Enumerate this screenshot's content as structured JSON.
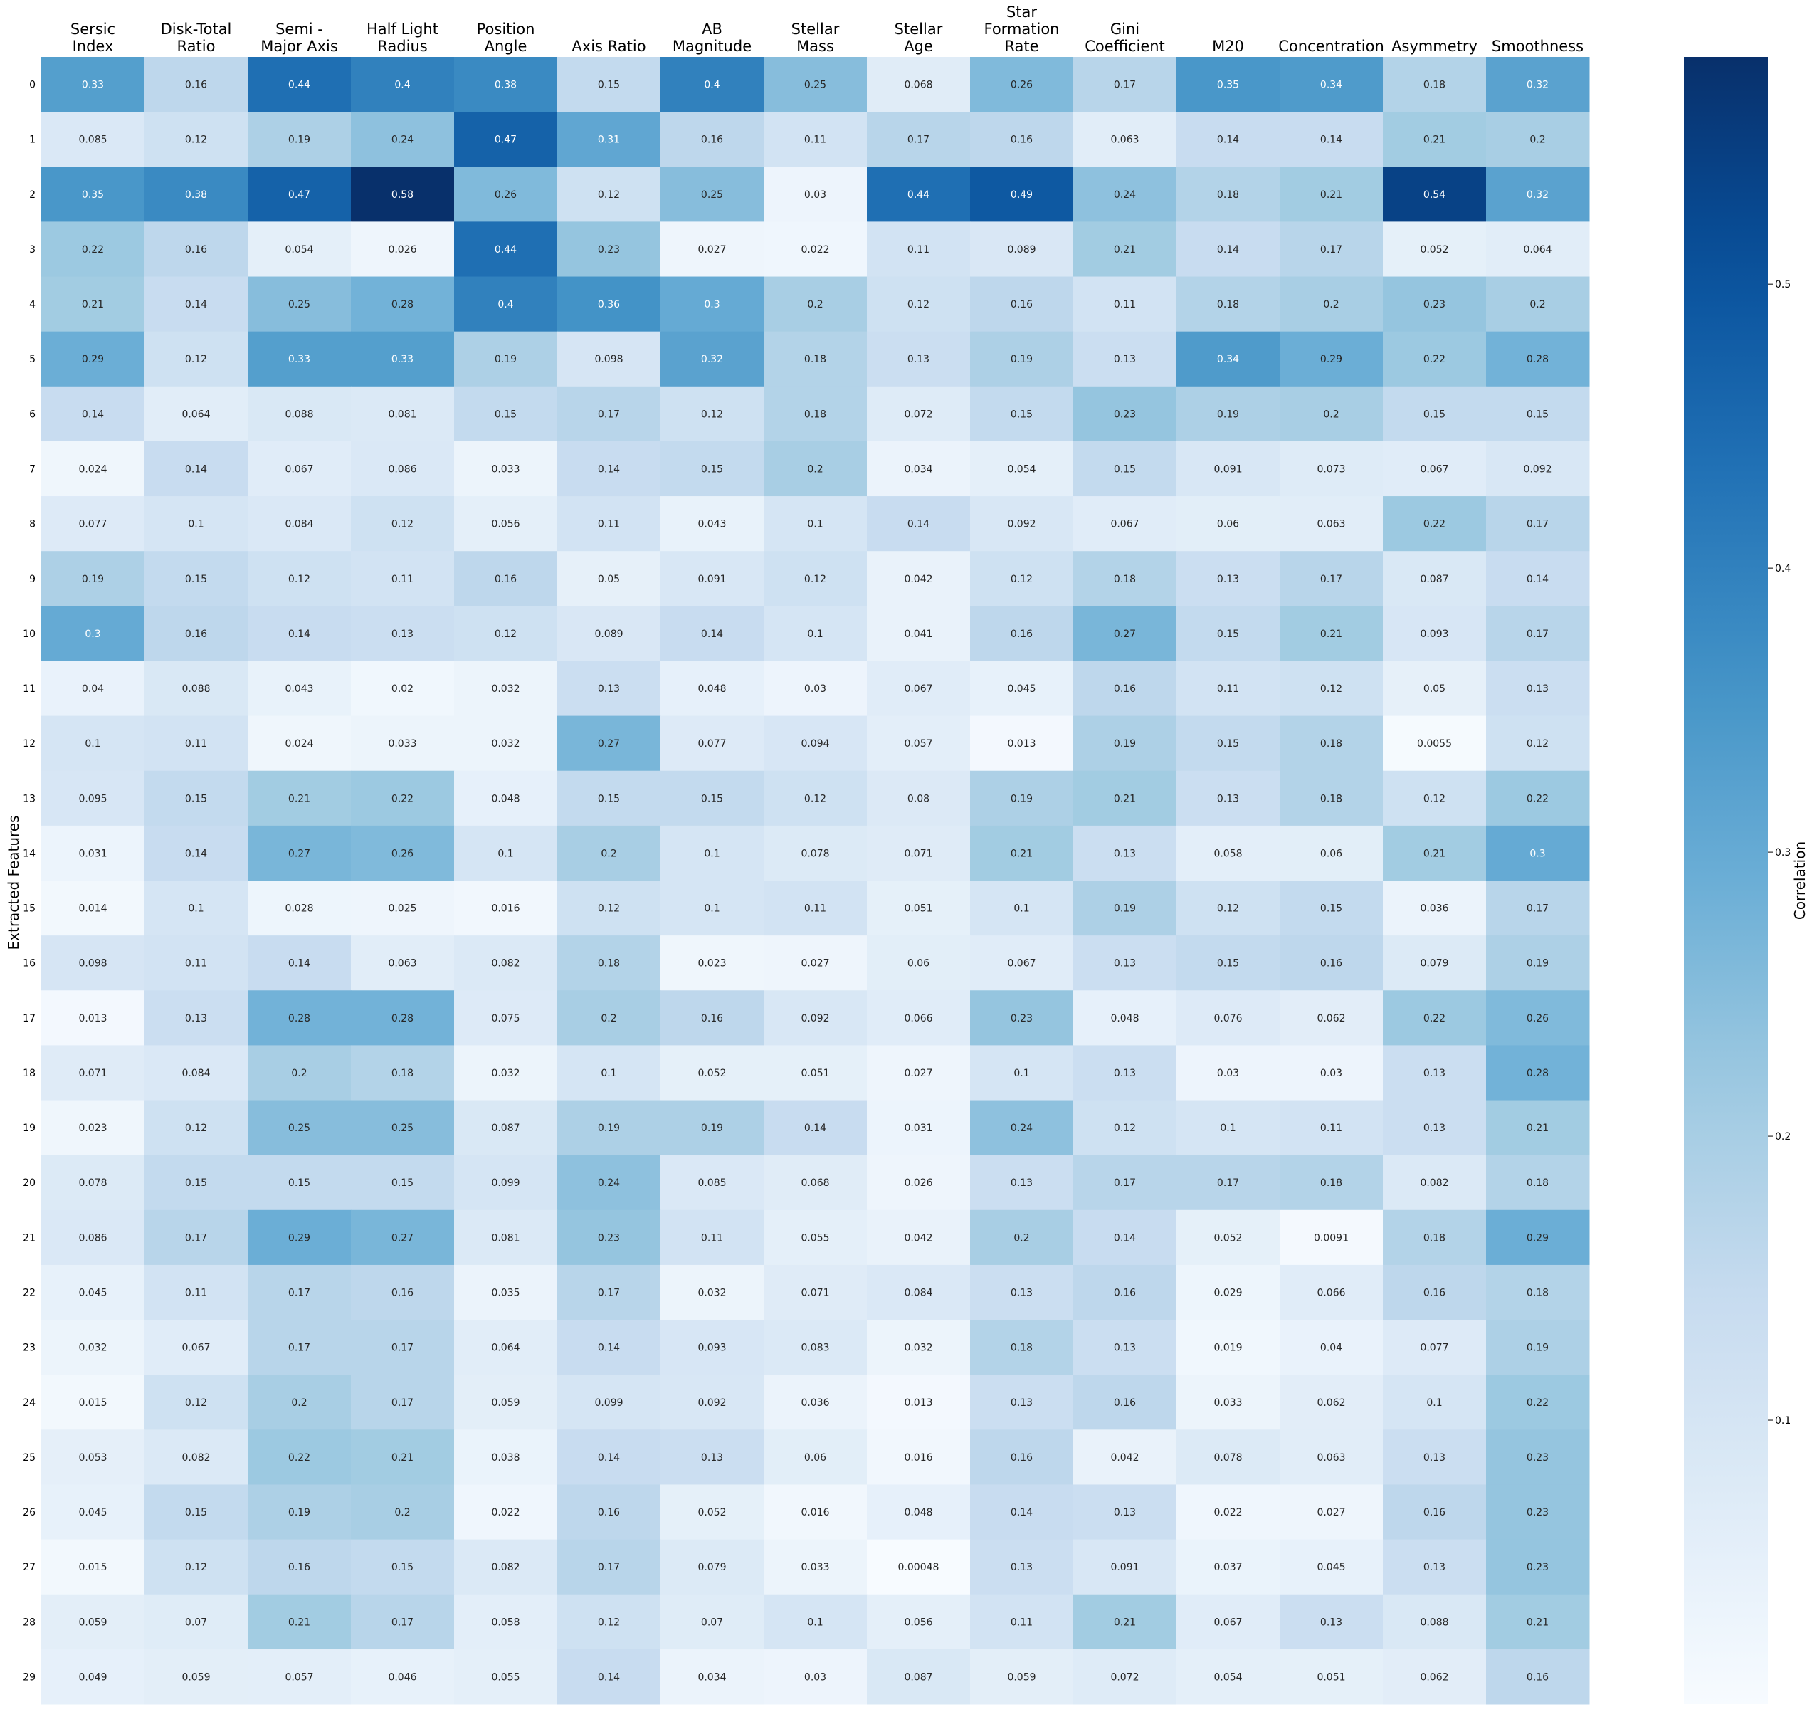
{
  "chart_data": {
    "type": "heatmap",
    "title": "",
    "xlabel": "",
    "ylabel": "Extracted Features",
    "colorbar_label": "Correlation",
    "colormap": "Blues",
    "color_range": [
      0.0,
      0.58
    ],
    "colorbar_ticks": [
      "0.1",
      "0.2",
      "0.3",
      "0.4",
      "0.5"
    ],
    "colorbar_tick_values": [
      0.1,
      0.2,
      0.3,
      0.4,
      0.5
    ],
    "columns": [
      [
        "Sersic",
        "Index"
      ],
      [
        "Disk-Total",
        "Ratio"
      ],
      [
        "Semi -",
        "Major Axis"
      ],
      [
        "Half Light",
        "Radius"
      ],
      [
        "Position",
        "Angle"
      ],
      [
        "Axis Ratio"
      ],
      [
        "AB",
        "Magnitude"
      ],
      [
        "Stellar",
        "Mass"
      ],
      [
        "Stellar",
        "Age"
      ],
      [
        "Star",
        "Formation",
        "Rate"
      ],
      [
        "Gini",
        "Coefficient"
      ],
      [
        "M20"
      ],
      [
        "Concentration"
      ],
      [
        "Asymmetry"
      ],
      [
        "Smoothness"
      ]
    ],
    "rows": [
      "0",
      "1",
      "2",
      "3",
      "4",
      "5",
      "6",
      "7",
      "8",
      "9",
      "10",
      "11",
      "12",
      "13",
      "14",
      "15",
      "16",
      "17",
      "18",
      "19",
      "20",
      "21",
      "22",
      "23",
      "24",
      "25",
      "26",
      "27",
      "28",
      "29"
    ],
    "values": [
      [
        "0.33",
        "0.16",
        "0.44",
        "0.4",
        "0.38",
        "0.15",
        "0.4",
        "0.25",
        "0.068",
        "0.26",
        "0.17",
        "0.35",
        "0.34",
        "0.18",
        "0.32"
      ],
      [
        "0.085",
        "0.12",
        "0.19",
        "0.24",
        "0.47",
        "0.31",
        "0.16",
        "0.11",
        "0.17",
        "0.16",
        "0.063",
        "0.14",
        "0.14",
        "0.21",
        "0.2"
      ],
      [
        "0.35",
        "0.38",
        "0.47",
        "0.58",
        "0.26",
        "0.12",
        "0.25",
        "0.03",
        "0.44",
        "0.49",
        "0.24",
        "0.18",
        "0.21",
        "0.54",
        "0.32"
      ],
      [
        "0.22",
        "0.16",
        "0.054",
        "0.026",
        "0.44",
        "0.23",
        "0.027",
        "0.022",
        "0.11",
        "0.089",
        "0.21",
        "0.14",
        "0.17",
        "0.052",
        "0.064"
      ],
      [
        "0.21",
        "0.14",
        "0.25",
        "0.28",
        "0.4",
        "0.36",
        "0.3",
        "0.2",
        "0.12",
        "0.16",
        "0.11",
        "0.18",
        "0.2",
        "0.23",
        "0.2"
      ],
      [
        "0.29",
        "0.12",
        "0.33",
        "0.33",
        "0.19",
        "0.098",
        "0.32",
        "0.18",
        "0.13",
        "0.19",
        "0.13",
        "0.34",
        "0.29",
        "0.22",
        "0.28"
      ],
      [
        "0.14",
        "0.064",
        "0.088",
        "0.081",
        "0.15",
        "0.17",
        "0.12",
        "0.18",
        "0.072",
        "0.15",
        "0.23",
        "0.19",
        "0.2",
        "0.15",
        "0.15"
      ],
      [
        "0.024",
        "0.14",
        "0.067",
        "0.086",
        "0.033",
        "0.14",
        "0.15",
        "0.2",
        "0.034",
        "0.054",
        "0.15",
        "0.091",
        "0.073",
        "0.067",
        "0.092"
      ],
      [
        "0.077",
        "0.1",
        "0.084",
        "0.12",
        "0.056",
        "0.11",
        "0.043",
        "0.1",
        "0.14",
        "0.092",
        "0.067",
        "0.06",
        "0.063",
        "0.22",
        "0.17"
      ],
      [
        "0.19",
        "0.15",
        "0.12",
        "0.11",
        "0.16",
        "0.05",
        "0.091",
        "0.12",
        "0.042",
        "0.12",
        "0.18",
        "0.13",
        "0.17",
        "0.087",
        "0.14"
      ],
      [
        "0.3",
        "0.16",
        "0.14",
        "0.13",
        "0.12",
        "0.089",
        "0.14",
        "0.1",
        "0.041",
        "0.16",
        "0.27",
        "0.15",
        "0.21",
        "0.093",
        "0.17"
      ],
      [
        "0.04",
        "0.088",
        "0.043",
        "0.02",
        "0.032",
        "0.13",
        "0.048",
        "0.03",
        "0.067",
        "0.045",
        "0.16",
        "0.11",
        "0.12",
        "0.05",
        "0.13"
      ],
      [
        "0.1",
        "0.11",
        "0.024",
        "0.033",
        "0.032",
        "0.27",
        "0.077",
        "0.094",
        "0.057",
        "0.013",
        "0.19",
        "0.15",
        "0.18",
        "0.0055",
        "0.12"
      ],
      [
        "0.095",
        "0.15",
        "0.21",
        "0.22",
        "0.048",
        "0.15",
        "0.15",
        "0.12",
        "0.08",
        "0.19",
        "0.21",
        "0.13",
        "0.18",
        "0.12",
        "0.22"
      ],
      [
        "0.031",
        "0.14",
        "0.27",
        "0.26",
        "0.1",
        "0.2",
        "0.1",
        "0.078",
        "0.071",
        "0.21",
        "0.13",
        "0.058",
        "0.06",
        "0.21",
        "0.3"
      ],
      [
        "0.014",
        "0.1",
        "0.028",
        "0.025",
        "0.016",
        "0.12",
        "0.1",
        "0.11",
        "0.051",
        "0.1",
        "0.19",
        "0.12",
        "0.15",
        "0.036",
        "0.17"
      ],
      [
        "0.098",
        "0.11",
        "0.14",
        "0.063",
        "0.082",
        "0.18",
        "0.023",
        "0.027",
        "0.06",
        "0.067",
        "0.13",
        "0.15",
        "0.16",
        "0.079",
        "0.19"
      ],
      [
        "0.013",
        "0.13",
        "0.28",
        "0.28",
        "0.075",
        "0.2",
        "0.16",
        "0.092",
        "0.066",
        "0.23",
        "0.048",
        "0.076",
        "0.062",
        "0.22",
        "0.26"
      ],
      [
        "0.071",
        "0.084",
        "0.2",
        "0.18",
        "0.032",
        "0.1",
        "0.052",
        "0.051",
        "0.027",
        "0.1",
        "0.13",
        "0.03",
        "0.03",
        "0.13",
        "0.28"
      ],
      [
        "0.023",
        "0.12",
        "0.25",
        "0.25",
        "0.087",
        "0.19",
        "0.19",
        "0.14",
        "0.031",
        "0.24",
        "0.12",
        "0.1",
        "0.11",
        "0.13",
        "0.21"
      ],
      [
        "0.078",
        "0.15",
        "0.15",
        "0.15",
        "0.099",
        "0.24",
        "0.085",
        "0.068",
        "0.026",
        "0.13",
        "0.17",
        "0.17",
        "0.18",
        "0.082",
        "0.18"
      ],
      [
        "0.086",
        "0.17",
        "0.29",
        "0.27",
        "0.081",
        "0.23",
        "0.11",
        "0.055",
        "0.042",
        "0.2",
        "0.14",
        "0.052",
        "0.0091",
        "0.18",
        "0.29"
      ],
      [
        "0.045",
        "0.11",
        "0.17",
        "0.16",
        "0.035",
        "0.17",
        "0.032",
        "0.071",
        "0.084",
        "0.13",
        "0.16",
        "0.029",
        "0.066",
        "0.16",
        "0.18"
      ],
      [
        "0.032",
        "0.067",
        "0.17",
        "0.17",
        "0.064",
        "0.14",
        "0.093",
        "0.083",
        "0.032",
        "0.18",
        "0.13",
        "0.019",
        "0.04",
        "0.077",
        "0.19"
      ],
      [
        "0.015",
        "0.12",
        "0.2",
        "0.17",
        "0.059",
        "0.099",
        "0.092",
        "0.036",
        "0.013",
        "0.13",
        "0.16",
        "0.033",
        "0.062",
        "0.1",
        "0.22"
      ],
      [
        "0.053",
        "0.082",
        "0.22",
        "0.21",
        "0.038",
        "0.14",
        "0.13",
        "0.06",
        "0.016",
        "0.16",
        "0.042",
        "0.078",
        "0.063",
        "0.13",
        "0.23"
      ],
      [
        "0.045",
        "0.15",
        "0.19",
        "0.2",
        "0.022",
        "0.16",
        "0.052",
        "0.016",
        "0.048",
        "0.14",
        "0.13",
        "0.022",
        "0.027",
        "0.16",
        "0.23"
      ],
      [
        "0.015",
        "0.12",
        "0.16",
        "0.15",
        "0.082",
        "0.17",
        "0.079",
        "0.033",
        "0.00048",
        "0.13",
        "0.091",
        "0.037",
        "0.045",
        "0.13",
        "0.23"
      ],
      [
        "0.059",
        "0.07",
        "0.21",
        "0.17",
        "0.058",
        "0.12",
        "0.07",
        "0.1",
        "0.056",
        "0.11",
        "0.21",
        "0.067",
        "0.13",
        "0.088",
        "0.21"
      ],
      [
        "0.049",
        "0.059",
        "0.057",
        "0.046",
        "0.055",
        "0.14",
        "0.034",
        "0.03",
        "0.087",
        "0.059",
        "0.072",
        "0.054",
        "0.051",
        "0.062",
        "0.16"
      ]
    ]
  }
}
